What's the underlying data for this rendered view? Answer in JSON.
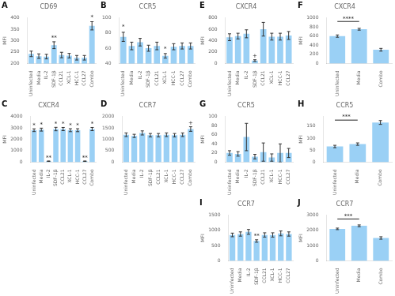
{
  "chart_data": [
    {
      "type": "bar",
      "panel_label": "A",
      "title": "CD69",
      "ylabel": "MFI",
      "categories": [
        "Uninfected",
        "Media",
        "IL-2",
        "SDF-1β",
        "CCL21",
        "XCL-1",
        "HCC-1",
        "CCL27",
        "Combo"
      ],
      "values": [
        242,
        232,
        230,
        280,
        237,
        234,
        225,
        225,
        365
      ],
      "errors": [
        12,
        10,
        10,
        15,
        12,
        10,
        10,
        10,
        18
      ],
      "ylim": [
        200,
        400
      ],
      "yticks": [
        200,
        250,
        300,
        350,
        400
      ],
      "grid": false,
      "annotations": [
        {
          "text": "**",
          "x": "SDF-1β",
          "y": 300
        },
        {
          "text": "*",
          "x": "Combo",
          "y": 388
        }
      ]
    },
    {
      "type": "bar",
      "panel_label": "B",
      "title": "CCR5",
      "categories": [
        "Uninfected",
        "Media",
        "IL-2",
        "SDF-1β",
        "CCL21",
        "XCL-1",
        "HCC-1",
        "CCL27",
        "Combo"
      ],
      "values": [
        75,
        63,
        68,
        60,
        63,
        50,
        62,
        63,
        63
      ],
      "errors": [
        6,
        5,
        5,
        4,
        5,
        3,
        4,
        4,
        4
      ],
      "ylim": [
        40,
        100
      ],
      "yticks": [
        40,
        60,
        80,
        100
      ],
      "grid": false,
      "annotations": [
        {
          "text": "*",
          "x": "Uninfected",
          "y": 84
        },
        {
          "text": "*",
          "x": "XCL-1",
          "y": 55
        }
      ]
    },
    {
      "type": "bar",
      "panel_label": "C",
      "title": "CXCR4",
      "ylabel": "MFI",
      "categories": [
        "Uninfected",
        "Media",
        "IL-2",
        "SDF-1β",
        "CCL21",
        "XCL-1",
        "HCC-1",
        "CCL27",
        "Combo"
      ],
      "values": [
        2800,
        2850,
        80,
        2900,
        2900,
        2800,
        2800,
        80,
        2900
      ],
      "errors": [
        120,
        130,
        20,
        150,
        140,
        130,
        130,
        20,
        140
      ],
      "ylim": [
        0,
        4000
      ],
      "yticks": [
        0,
        1000,
        2000,
        3000,
        4000
      ],
      "grid": false,
      "annotations": [
        {
          "text": "*",
          "x": "Uninfected",
          "y": 2950
        },
        {
          "text": "*",
          "x": "Media",
          "y": 3010
        },
        {
          "text": "**",
          "x": "IL-2",
          "y": 110
        },
        {
          "text": "*",
          "x": "SDF-1β",
          "y": 3080
        },
        {
          "text": "*",
          "x": "CCL21",
          "y": 3070
        },
        {
          "text": "*",
          "x": "XCL-1",
          "y": 2960
        },
        {
          "text": "*",
          "x": "HCC-1",
          "y": 2960
        },
        {
          "text": "**",
          "x": "CCL27",
          "y": 110
        },
        {
          "text": "*",
          "x": "Combo",
          "y": 3070
        }
      ]
    },
    {
      "type": "bar",
      "panel_label": "D",
      "title": "CCR7",
      "categories": [
        "Uninfected",
        "Media",
        "IL-2",
        "SDF-1β",
        "CCL21",
        "XCL-1",
        "HCC-1",
        "CCL27",
        "Combo"
      ],
      "values": [
        1200,
        1150,
        1280,
        1180,
        1180,
        1200,
        1180,
        1200,
        1450
      ],
      "errors": [
        80,
        70,
        90,
        75,
        75,
        80,
        75,
        80,
        100
      ],
      "ylim": [
        0,
        2000
      ],
      "yticks": [
        0,
        500,
        1000,
        1500,
        2000
      ],
      "grid": false,
      "annotations": [
        {
          "text": "+",
          "x": "Combo",
          "y": 1580
        }
      ]
    },
    {
      "type": "bar",
      "panel_label": "E",
      "title": "CXCR4",
      "ylabel": "MFI",
      "categories": [
        "Uninfected",
        "Media",
        "IL-2",
        "SDF-1β",
        "CCL21",
        "XCL-1",
        "HCC-1",
        "CCL27"
      ],
      "values": [
        460,
        480,
        520,
        50,
        600,
        470,
        470,
        490
      ],
      "errors": [
        60,
        50,
        70,
        15,
        120,
        60,
        60,
        70
      ],
      "ylim": [
        0,
        800
      ],
      "yticks": [
        0,
        200,
        400,
        600,
        800
      ],
      "grid": false,
      "annotations": [
        {
          "text": "+",
          "x": "SDF-1β",
          "y": 80
        }
      ]
    },
    {
      "type": "bar",
      "panel_label": "F",
      "title": "CXCR4",
      "ylabel": "MFI",
      "categories": [
        "Uninfected",
        "Media",
        "Combo"
      ],
      "values": [
        600,
        750,
        300
      ],
      "errors": [
        25,
        20,
        30
      ],
      "ylim": [
        0,
        1000
      ],
      "yticks": [
        0,
        200,
        400,
        600,
        800,
        1000
      ],
      "grid": false,
      "annotations": [
        {
          "text": "****",
          "x": [
            "Uninfected",
            "Media"
          ],
          "y": 920
        }
      ]
    },
    {
      "type": "bar",
      "panel_label": "G",
      "title": "CCR5",
      "ylabel": "MFI",
      "categories": [
        "Uninfected",
        "Media",
        "IL-2",
        "SDF-1β",
        "CCL21",
        "XCL-1",
        "HCC-1",
        "CCL27"
      ],
      "values": [
        20,
        18,
        55,
        12,
        22,
        10,
        20,
        20
      ],
      "errors": [
        5,
        5,
        30,
        5,
        20,
        8,
        20,
        10
      ],
      "ylim": [
        0,
        100
      ],
      "yticks": [
        0,
        20,
        40,
        60,
        80,
        100
      ],
      "grid": false
    },
    {
      "type": "bar",
      "panel_label": "H",
      "title": "CCR5",
      "ylabel": "MFI",
      "categories": [
        "Uninfected",
        "Media",
        "Combo"
      ],
      "values": [
        65,
        75,
        165
      ],
      "errors": [
        5,
        5,
        8
      ],
      "ylim": [
        0,
        190
      ],
      "yticks": [
        0,
        50,
        100,
        150
      ],
      "grid": false,
      "annotations": [
        {
          "text": "***",
          "x": [
            "Uninfected",
            "Media"
          ],
          "y": 175
        }
      ]
    },
    {
      "type": "bar",
      "panel_label": "I",
      "title": "CCR7",
      "ylabel": "MFI",
      "categories": [
        "Uninfected",
        "Media",
        "IL-2",
        "SDF-1β",
        "CCL21",
        "XCL-1",
        "HCC-1",
        "CCL27"
      ],
      "values": [
        850,
        880,
        950,
        650,
        850,
        850,
        900,
        880
      ],
      "errors": [
        60,
        70,
        80,
        40,
        70,
        70,
        80,
        70
      ],
      "ylim": [
        0,
        1500
      ],
      "yticks": [
        0,
        500,
        1000,
        1500
      ],
      "grid": false,
      "annotations": [
        {
          "text": "**",
          "x": "SDF-1β",
          "y": 720
        }
      ]
    },
    {
      "type": "bar",
      "panel_label": "J",
      "title": "CCR7",
      "ylabel": "MFI",
      "categories": [
        "Uninfected",
        "Media",
        "Combo"
      ],
      "values": [
        2100,
        2300,
        1500
      ],
      "errors": [
        50,
        60,
        80
      ],
      "ylim": [
        0,
        3000
      ],
      "yticks": [
        0,
        1000,
        2000,
        3000
      ],
      "grid": false,
      "annotations": [
        {
          "text": "***",
          "x": [
            "Uninfected",
            "Media"
          ],
          "y": 2750
        }
      ]
    }
  ]
}
